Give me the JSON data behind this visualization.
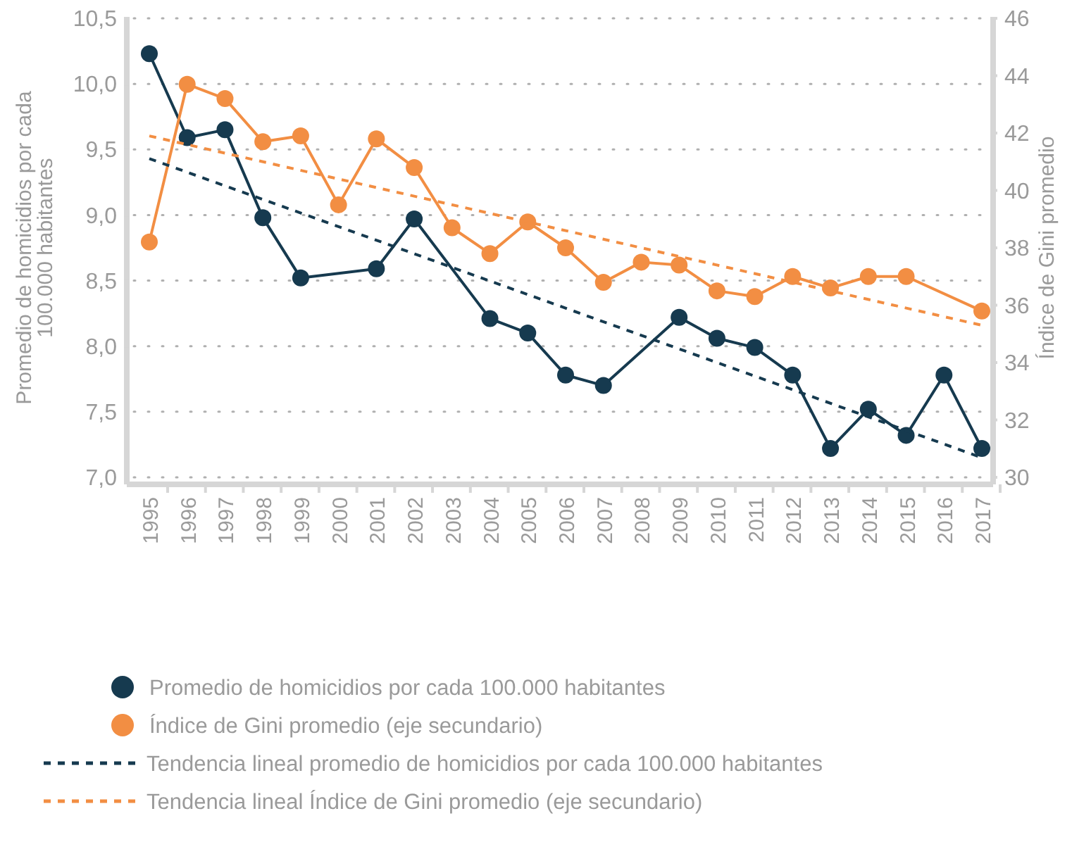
{
  "chart_data": {
    "type": "line",
    "ylabel": "Promedio de homicidios por cada 100.000 habitantes",
    "y2label": "Índice de Gini promedio",
    "categories": [
      "1995",
      "1996",
      "1997",
      "1998",
      "1999",
      "2000",
      "2001",
      "2002",
      "2003",
      "2004",
      "2005",
      "2006",
      "2007",
      "2008",
      "2009",
      "2010",
      "2011",
      "2012",
      "2013",
      "2014",
      "2015",
      "2016",
      "2017"
    ],
    "series": [
      {
        "name": "Promedio de homicidios por cada 100.000 habitantes",
        "color": "#163a4f",
        "marker": "circle",
        "line_style": "solid",
        "values": [
          10.23,
          9.59,
          9.65,
          8.98,
          8.52,
          null,
          8.59,
          8.97,
          null,
          8.21,
          8.1,
          7.78,
          7.7,
          null,
          8.22,
          8.06,
          7.99,
          7.78,
          7.22,
          7.52,
          7.32,
          7.78,
          7.22
        ]
      },
      {
        "name": "Índice de Gini promedio (eje secundario)",
        "color": "#f28e43",
        "marker": "circle",
        "line_style": "solid",
        "axis": "y2",
        "values": [
          38.2,
          43.7,
          43.2,
          41.7,
          41.9,
          39.5,
          41.8,
          40.8,
          38.7,
          37.8,
          38.9,
          38,
          36.8,
          37.5,
          37.4,
          36.5,
          36.3,
          37,
          36.6,
          37,
          37,
          null,
          35.8
        ]
      },
      {
        "name": "Tendencia lineal promedio de homicidios por cada 100.000 habitantes",
        "color": "#163a4f",
        "marker": "none",
        "line_style": "dashed",
        "values": [
          9.43,
          null,
          null,
          null,
          null,
          null,
          null,
          null,
          null,
          null,
          null,
          null,
          null,
          null,
          null,
          null,
          null,
          null,
          null,
          null,
          null,
          null,
          7.15
        ]
      },
      {
        "name": "Tendencia lineal Índice de Gini promedio (eje secundario)",
        "color": "#f28e43",
        "marker": "none",
        "line_style": "dashed",
        "axis": "y2",
        "values": [
          41.9,
          null,
          null,
          null,
          null,
          null,
          null,
          null,
          null,
          null,
          null,
          null,
          null,
          null,
          null,
          null,
          null,
          null,
          null,
          null,
          null,
          null,
          35.3
        ]
      }
    ],
    "ylim": [
      7,
      10.5
    ],
    "yticks": [
      {
        "value": 7,
        "label": "7,0"
      },
      {
        "value": 7.5,
        "label": "7,5"
      },
      {
        "value": 8,
        "label": "8,0"
      },
      {
        "value": 8.5,
        "label": "8,5"
      },
      {
        "value": 9,
        "label": "9,0"
      },
      {
        "value": 9.5,
        "label": "9,5"
      },
      {
        "value": 10,
        "label": "10,0"
      },
      {
        "value": 10.5,
        "label": "10,5"
      }
    ],
    "y2lim": [
      30,
      46
    ],
    "y2ticks": [
      30,
      32,
      34,
      36,
      38,
      40,
      42,
      44,
      46
    ],
    "grid": "y",
    "legend": "bottom"
  }
}
